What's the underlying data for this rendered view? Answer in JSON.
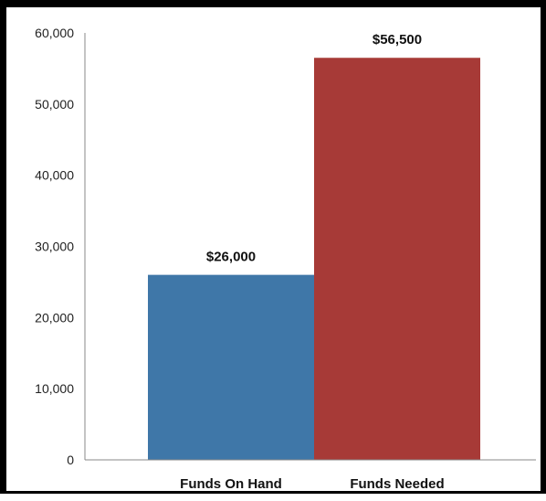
{
  "chart_data": {
    "type": "bar",
    "categories": [
      "Funds On Hand",
      "Funds Needed"
    ],
    "values": [
      26000,
      56500
    ],
    "data_labels": [
      "$26,000",
      "$56,500"
    ],
    "colors": [
      "#3f77a8",
      "#a73a37"
    ],
    "y_ticks": [
      "0",
      "10,000",
      "20,000",
      "30,000",
      "40,000",
      "50,000",
      "60,000"
    ],
    "ylim": [
      0,
      60000
    ],
    "grid": false,
    "legend": "none",
    "title": "",
    "xlabel": "",
    "ylabel": ""
  }
}
